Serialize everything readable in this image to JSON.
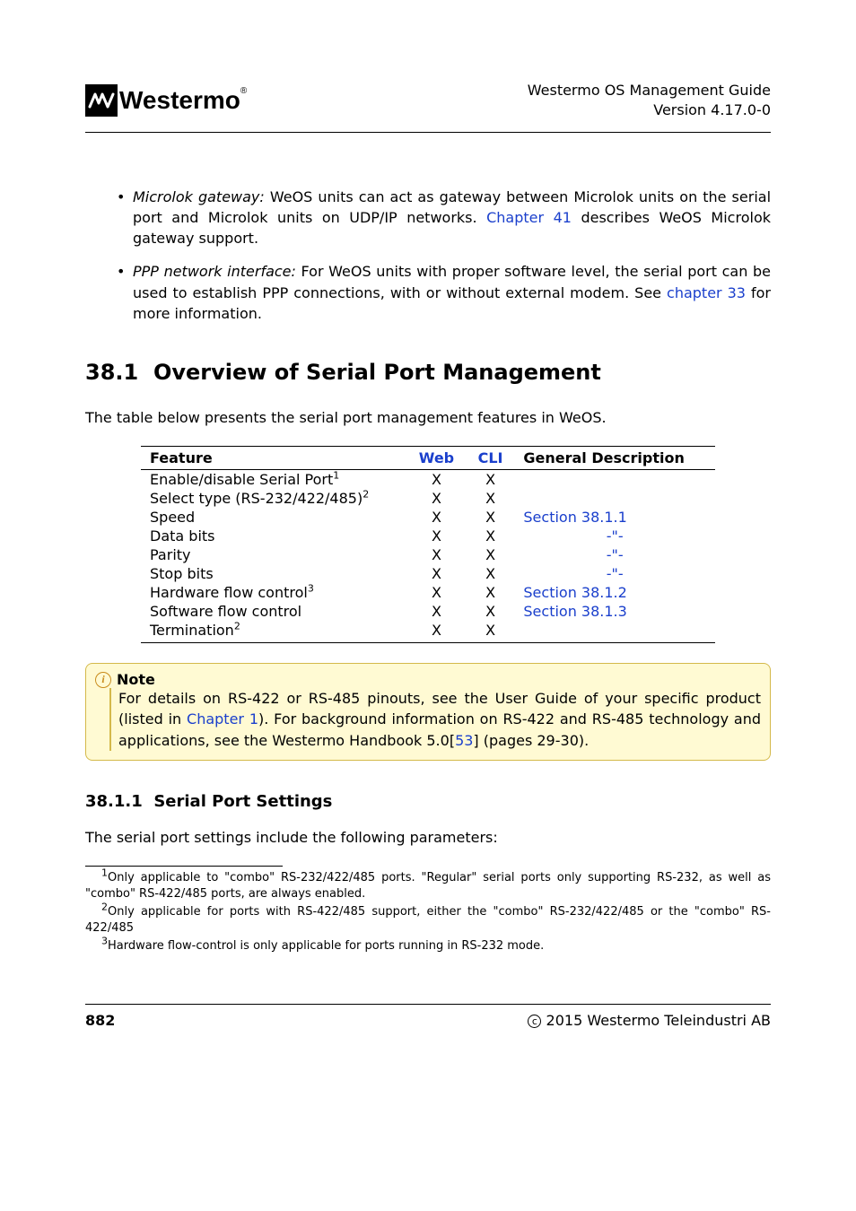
{
  "header": {
    "logo_word": "Westermo",
    "guide_title": "Westermo OS Management Guide",
    "version": "Version 4.17.0-0"
  },
  "bullets": [
    {
      "term": "Microlok gateway:",
      "text_before": " WeOS units can act as gateway between Microlok units on the serial port and Microlok units on UDP/IP networks. ",
      "link": "Chapter 41",
      "text_after": " describes WeOS Microlok gateway support."
    },
    {
      "term": "PPP network interface:",
      "text_before": " For WeOS units with proper software level, the serial port can be used to establish PPP connections, with or without external modem. See ",
      "link": "chapter 33",
      "text_after": " for more information."
    }
  ],
  "section": {
    "number": "38.1",
    "title": "Overview of Serial Port Management",
    "intro": "The table below presents the serial port management features in WeOS."
  },
  "table": {
    "headers": {
      "feature": "Feature",
      "web": "Web",
      "cli": "CLI",
      "desc": "General Description"
    },
    "rows": [
      {
        "feature": "Enable/disable Serial Port",
        "sup": "1",
        "web": "X",
        "cli": "X",
        "desc": ""
      },
      {
        "feature": "Select type (RS-232/422/485)",
        "sup": "2",
        "web": "X",
        "cli": "X",
        "desc": ""
      },
      {
        "feature": "Speed",
        "sup": "",
        "web": "X",
        "cli": "X",
        "desc": "Section 38.1.1"
      },
      {
        "feature": "Data bits",
        "sup": "",
        "web": "X",
        "cli": "X",
        "desc": "-\"-"
      },
      {
        "feature": "Parity",
        "sup": "",
        "web": "X",
        "cli": "X",
        "desc": "-\"-"
      },
      {
        "feature": "Stop bits",
        "sup": "",
        "web": "X",
        "cli": "X",
        "desc": "-\"-"
      },
      {
        "feature": "Hardware flow control",
        "sup": "3",
        "web": "X",
        "cli": "X",
        "desc": "Section 38.1.2"
      },
      {
        "feature": "Software flow control",
        "sup": "",
        "web": "X",
        "cli": "X",
        "desc": "Section 38.1.3"
      },
      {
        "feature": "Termination",
        "sup": "2",
        "web": "X",
        "cli": "X",
        "desc": ""
      }
    ]
  },
  "note": {
    "title": "Note",
    "text_a": "For details on RS-422 or RS-485 pinouts, see the User Guide of your specific product (listed in ",
    "link_a": "Chapter 1",
    "text_b": "). For background information on RS-422 and RS-485 technology and applications, see the Westermo Handbook 5.0[",
    "link_b": "53",
    "text_c": "] (pages 29-30)."
  },
  "subsection": {
    "number": "38.1.1",
    "title": "Serial Port Settings",
    "intro": "The serial port settings include the following parameters:"
  },
  "footnotes": [
    {
      "num": "1",
      "text": "Only applicable to \"combo\" RS-232/422/485 ports. \"Regular\" serial ports only supporting RS-232, as well as \"combo\" RS-422/485 ports, are always enabled."
    },
    {
      "num": "2",
      "text": "Only applicable for ports with RS-422/485 support, either the \"combo\" RS-232/422/485 or the \"combo\" RS-422/485"
    },
    {
      "num": "3",
      "text": "Hardware flow-control is only applicable for ports running in RS-232 mode."
    }
  ],
  "footer": {
    "page": "882",
    "copyright": "2015 Westermo Teleindustri AB"
  },
  "colors": {
    "link": "#1a3fcc",
    "note_bg": "#fffad3",
    "note_border": "#d4b94a",
    "note_icon": "#c98b1a"
  }
}
